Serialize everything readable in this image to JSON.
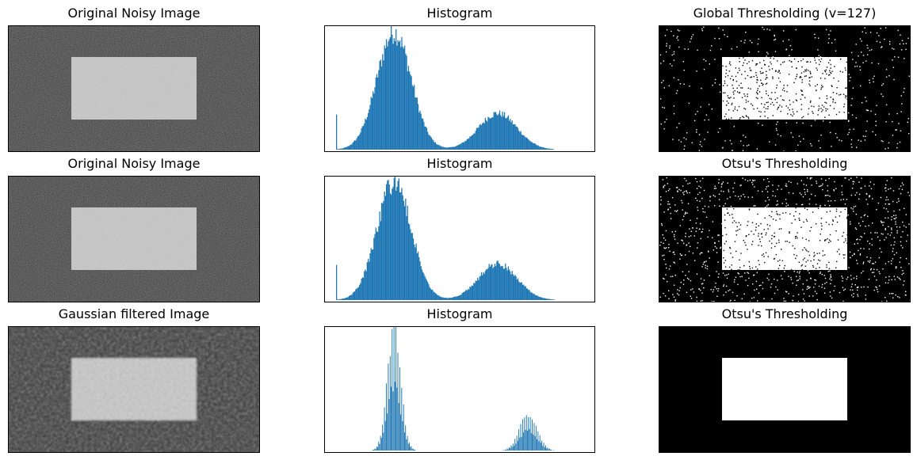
{
  "titles": {
    "r0c0": "Original Noisy Image",
    "r0c1": "Histogram",
    "r0c2": "Global Thresholding (v=127)",
    "r1c0": "Original Noisy Image",
    "r1c1": "Histogram",
    "r1c2": "Otsu's Thresholding",
    "r2c0": "Gaussian filtered Image",
    "r2c1": "Histogram",
    "r2c2": "Otsu's Thresholding"
  },
  "colors": {
    "bar": "#1f77b4",
    "dark": "#000000",
    "light": "#ffffff"
  },
  "chart_data": [
    {
      "type": "bar",
      "title": "Histogram",
      "x_range": [
        0,
        256
      ],
      "axes_ticks": "off",
      "series": [
        {
          "peaks": [
            {
              "center": 60,
              "sigma": 18,
              "height": 1.0
            },
            {
              "center": 168,
              "sigma": 20,
              "height": 0.31
            }
          ],
          "spike": {
            "x": 0,
            "height": 0.3
          }
        }
      ]
    },
    {
      "type": "bar",
      "title": "Histogram",
      "x_range": [
        0,
        256
      ],
      "axes_ticks": "off",
      "series": [
        {
          "peaks": [
            {
              "center": 60,
              "sigma": 18,
              "height": 1.0
            },
            {
              "center": 168,
              "sigma": 20,
              "height": 0.31
            }
          ],
          "spike": {
            "x": 0,
            "height": 0.3
          }
        }
      ]
    },
    {
      "type": "bar",
      "title": "Histogram",
      "x_range": [
        0,
        256
      ],
      "axes_ticks": "off",
      "series": [
        {
          "peaks": [
            {
              "center": 60,
              "sigma": 7,
              "height": 1.0
            },
            {
              "center": 200,
              "sigma": 9,
              "height": 0.31
            }
          ]
        }
      ]
    }
  ]
}
